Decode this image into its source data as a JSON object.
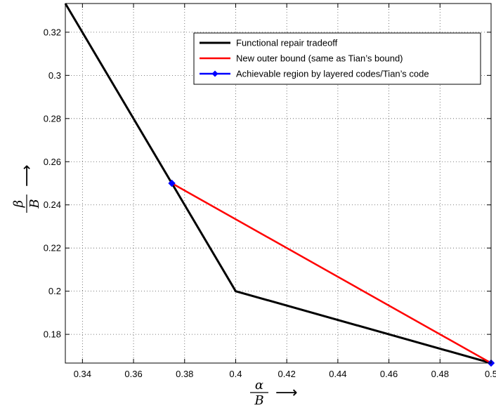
{
  "chart_data": {
    "type": "line",
    "title": "",
    "xlabel": {
      "numerator": "α",
      "denominator": "B",
      "arrow": "⟶"
    },
    "ylabel": {
      "numerator": "β",
      "denominator": "B",
      "arrow": "⟶"
    },
    "xlim": [
      0.3333,
      0.5
    ],
    "ylim": [
      0.1667,
      0.3333
    ],
    "x_ticks": [
      0.34,
      0.36,
      0.38,
      0.4,
      0.42,
      0.44,
      0.46,
      0.48,
      0.5
    ],
    "x_tick_labels": [
      "0.34",
      "0.36",
      "0.38",
      "0.4",
      "0.42",
      "0.44",
      "0.46",
      "0.48",
      "0.5"
    ],
    "y_ticks": [
      0.18,
      0.2,
      0.22,
      0.24,
      0.26,
      0.28,
      0.3,
      0.32
    ],
    "y_tick_labels": [
      "0.18",
      "0.2",
      "0.22",
      "0.24",
      "0.26",
      "0.28",
      "0.3",
      "0.32"
    ],
    "grid": true,
    "legend_position": "top-right",
    "series": [
      {
        "name": "Functional repair tradeoff",
        "color": "#000000",
        "marker": "none",
        "x": [
          0.3333,
          0.375,
          0.4,
          0.5
        ],
        "y": [
          0.3333,
          0.25,
          0.2,
          0.1667
        ]
      },
      {
        "name": "New outer bound (same as Tian’s bound)",
        "color": "#ff0000",
        "marker": "none",
        "x": [
          0.375,
          0.5
        ],
        "y": [
          0.25,
          0.1667
        ]
      },
      {
        "name": "Achievable region by layered codes/Tian’s code",
        "color": "#0000ff",
        "marker": "diamond",
        "x": [
          0.375,
          0.5
        ],
        "y": [
          0.25,
          0.1667
        ]
      }
    ]
  }
}
